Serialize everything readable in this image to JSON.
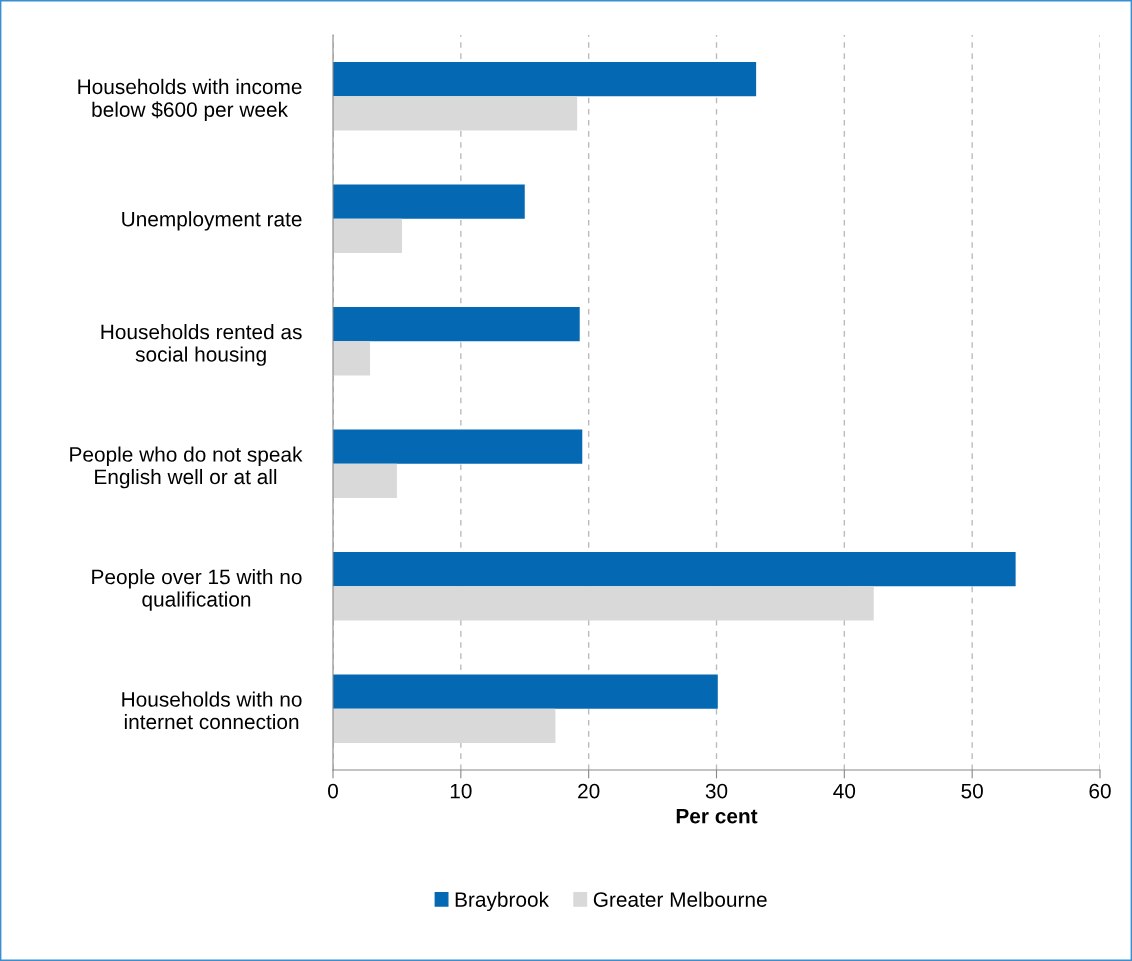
{
  "chart_data": {
    "type": "bar",
    "orientation": "horizontal",
    "xlabel": "Per cent",
    "categories": [
      "Households with income\nbelow $600 per week",
      "Unemployment rate",
      "Households rented as\nsocial housing",
      "People who do not speak\nEnglish well or at all",
      "People over 15 with no\nqualification",
      "Households with no\ninternet connection"
    ],
    "series": [
      {
        "name": "Braybrook",
        "color": "#0568b3",
        "values": [
          33.1,
          15.0,
          19.3,
          19.5,
          53.4,
          30.1
        ]
      },
      {
        "name": "Greater Melbourne",
        "color": "#d9d9d9",
        "values": [
          19.1,
          5.4,
          2.9,
          5.0,
          42.3,
          17.4
        ]
      }
    ],
    "xlim": [
      0,
      60
    ],
    "xticks": [
      0,
      10,
      20,
      30,
      40,
      50,
      60
    ],
    "grid": "x",
    "legend": "bottom"
  }
}
